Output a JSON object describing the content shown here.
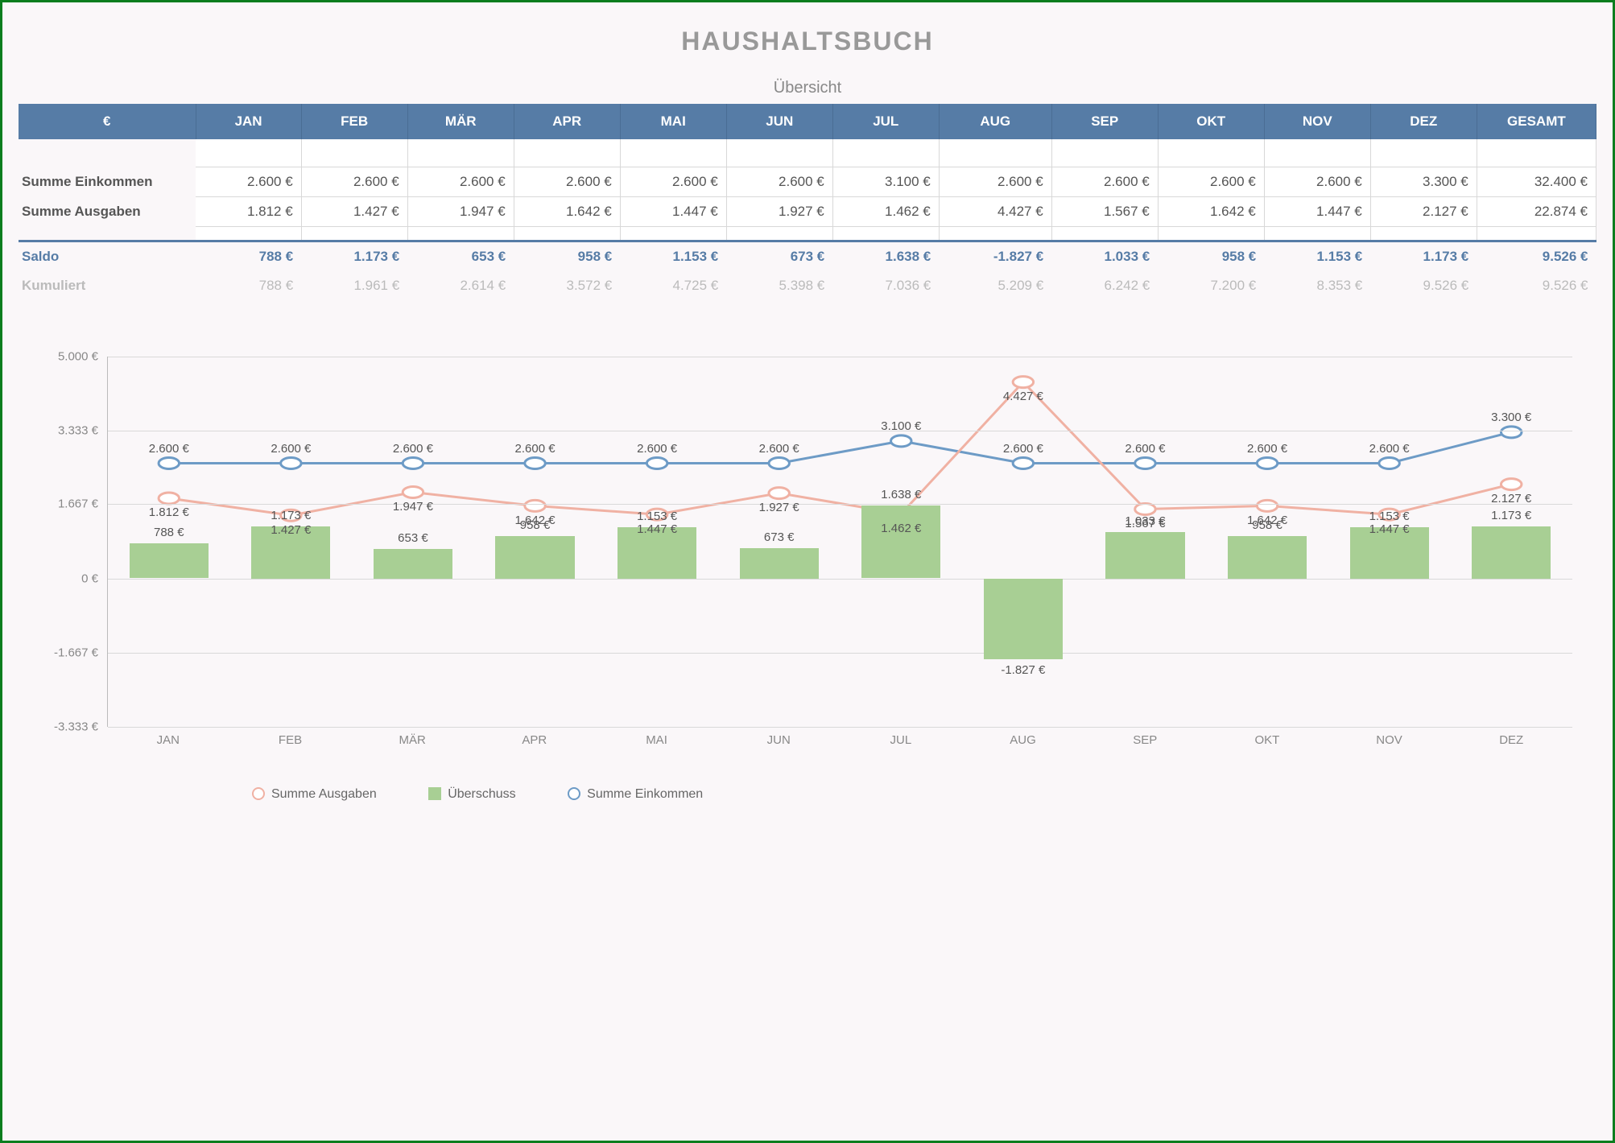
{
  "title": "HAUSHALTSBUCH",
  "subtitle": "Übersicht",
  "currency_header": "€",
  "gesamt_label": "GESAMT",
  "months": [
    "JAN",
    "FEB",
    "MÄR",
    "APR",
    "MAI",
    "JUN",
    "JUL",
    "AUG",
    "SEP",
    "OKT",
    "NOV",
    "DEZ"
  ],
  "rows": {
    "einkommen": {
      "label": "Summe Einkommen",
      "values": [
        "2.600 €",
        "2.600 €",
        "2.600 €",
        "2.600 €",
        "2.600 €",
        "2.600 €",
        "3.100 €",
        "2.600 €",
        "2.600 €",
        "2.600 €",
        "2.600 €",
        "3.300 €"
      ],
      "total": "32.400 €",
      "numeric": [
        2600,
        2600,
        2600,
        2600,
        2600,
        2600,
        3100,
        2600,
        2600,
        2600,
        2600,
        3300
      ]
    },
    "ausgaben": {
      "label": "Summe Ausgaben",
      "values": [
        "1.812 €",
        "1.427 €",
        "1.947 €",
        "1.642 €",
        "1.447 €",
        "1.927 €",
        "1.462 €",
        "4.427 €",
        "1.567 €",
        "1.642 €",
        "1.447 €",
        "2.127 €"
      ],
      "total": "22.874 €",
      "numeric": [
        1812,
        1427,
        1947,
        1642,
        1447,
        1927,
        1462,
        4427,
        1567,
        1642,
        1447,
        2127
      ]
    },
    "saldo": {
      "label": "Saldo",
      "values": [
        "788 €",
        "1.173 €",
        "653 €",
        "958 €",
        "1.153 €",
        "673 €",
        "1.638 €",
        "-1.827 €",
        "1.033 €",
        "958 €",
        "1.153 €",
        "1.173 €"
      ],
      "total": "9.526 €",
      "numeric": [
        788,
        1173,
        653,
        958,
        1153,
        673,
        1638,
        -1827,
        1033,
        958,
        1153,
        1173
      ]
    },
    "kumuliert": {
      "label": "Kumuliert",
      "values": [
        "788 €",
        "1.961 €",
        "2.614 €",
        "3.572 €",
        "4.725 €",
        "5.398 €",
        "7.036 €",
        "5.209 €",
        "6.242 €",
        "7.200 €",
        "8.353 €",
        "9.526 €"
      ],
      "total": "9.526 €"
    }
  },
  "chart": {
    "type": "combo-bar-line",
    "ymin": -3333,
    "ymax": 5000,
    "yticks": [
      -3333,
      -1667,
      0,
      1667,
      3333,
      5000
    ],
    "ytick_labels": [
      "-3.333 €",
      "-1.667 €",
      "0 €",
      "1.667 €",
      "3.333 €",
      "5.000 €"
    ],
    "bar_color": "#a8cf94",
    "line_einkommen_color": "#6d9bc6",
    "line_ausgaben_color": "#f0b1a3",
    "marker_fill": "#ffffff",
    "grid_color": "#d9d9d9",
    "label_fontsize": 15,
    "background_color": "#faf7f9",
    "legend": {
      "ausgaben": "Summe Ausgaben",
      "ueberschuss": "Überschuss",
      "einkommen": "Summe Einkommen"
    }
  },
  "colors": {
    "header_bg": "#567ca6",
    "page_border": "#0b7d1e",
    "text_muted": "#bbbbbb"
  }
}
